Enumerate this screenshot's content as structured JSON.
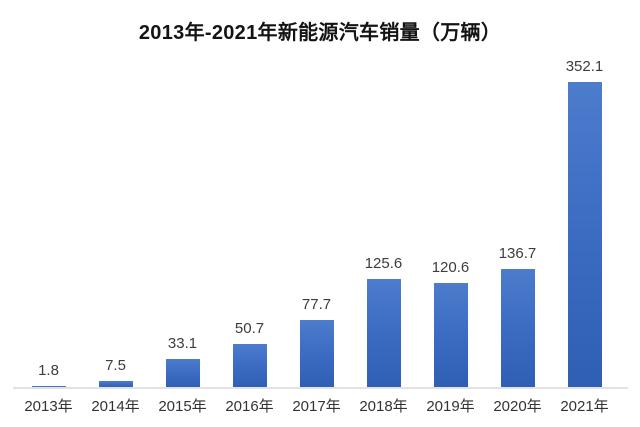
{
  "title": "2013年-2021年新能源汽车销量（万辆）",
  "chart_data": {
    "type": "bar",
    "title": "2013年-2021年新能源汽车销量（万辆）",
    "categories": [
      "2013年",
      "2014年",
      "2015年",
      "2016年",
      "2017年",
      "2018年",
      "2019年",
      "2020年",
      "2021年"
    ],
    "values": [
      1.8,
      7.5,
      33.1,
      50.7,
      77.7,
      125.6,
      120.6,
      136.7,
      352.1
    ],
    "xlabel": "",
    "ylabel": "",
    "ylim": [
      0,
      360
    ],
    "grid": false,
    "legend": false,
    "data_labels": true,
    "bar_color": "#3b6cc2",
    "bar_gradient_top": "#4d7ccc",
    "bar_gradient_bottom": "#2f5fb3",
    "data_label_color": "#3d3d3d",
    "tick_label_color": "#333333",
    "title_color": "#141414",
    "axis_line_color": "#e2e2e2",
    "background_color": "#ffffff"
  }
}
